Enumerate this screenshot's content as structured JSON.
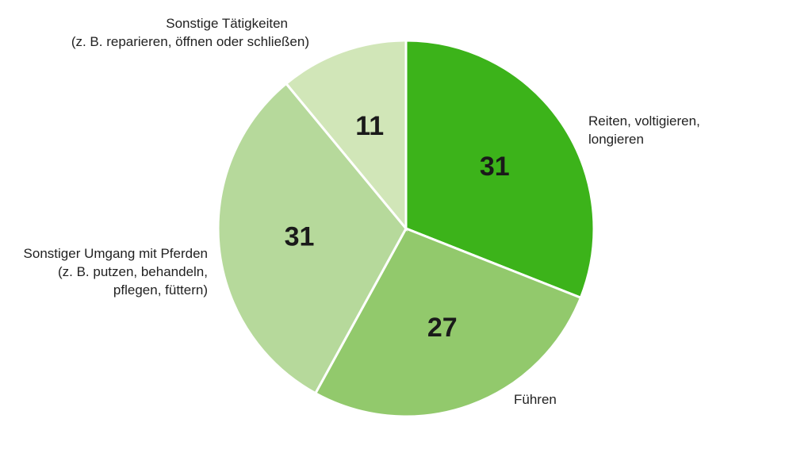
{
  "chart_data": {
    "type": "pie",
    "categories": [
      [
        "Reiten, voltigieren,",
        "longieren"
      ],
      [
        "Führen"
      ],
      [
        "Sonstiger Umgang mit Pferden",
        "(z. B. putzen, behandeln,",
        "pflegen, füttern)"
      ],
      [
        "Sonstige Tätigkeiten",
        "(z. B. reparieren, öffnen oder schließen)"
      ]
    ],
    "values": [
      31,
      27,
      31,
      11
    ],
    "colors": [
      "#3cb31a",
      "#92c96c",
      "#b6d99b",
      "#d1e6b8"
    ]
  }
}
